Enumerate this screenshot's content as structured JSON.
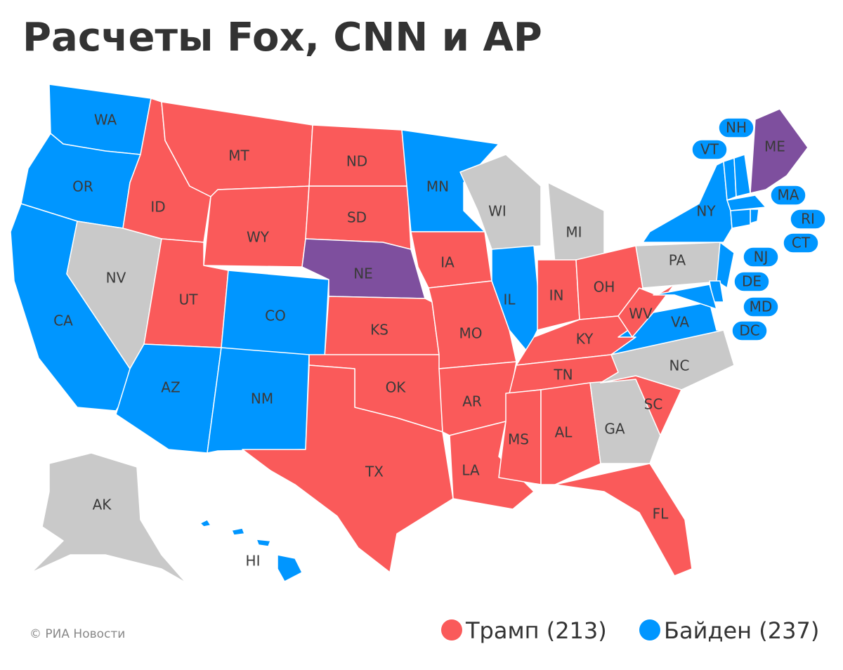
{
  "title": "Расчеты Fox, CNN и AP",
  "states": [
    {
      "code": "WA",
      "color": "#0096ff"
    },
    {
      "code": "OR",
      "color": "#0096ff"
    },
    {
      "code": "CA",
      "color": "#0096ff"
    },
    {
      "code": "NV",
      "color": "#c9c9c9"
    },
    {
      "code": "ID",
      "color": "#fa5a5a"
    },
    {
      "code": "MT",
      "color": "#fa5a5a"
    },
    {
      "code": "WY",
      "color": "#fa5a5a"
    },
    {
      "code": "UT",
      "color": "#fa5a5a"
    },
    {
      "code": "CO",
      "color": "#0096ff"
    },
    {
      "code": "AZ",
      "color": "#0096ff"
    },
    {
      "code": "NM",
      "color": "#0096ff"
    },
    {
      "code": "ND",
      "color": "#fa5a5a"
    },
    {
      "code": "SD",
      "color": "#fa5a5a"
    },
    {
      "code": "NE",
      "color": "#7e4f9e"
    },
    {
      "code": "KS",
      "color": "#fa5a5a"
    },
    {
      "code": "OK",
      "color": "#fa5a5a"
    },
    {
      "code": "TX",
      "color": "#fa5a5a"
    },
    {
      "code": "MN",
      "color": "#0096ff"
    },
    {
      "code": "IA",
      "color": "#fa5a5a"
    },
    {
      "code": "MO",
      "color": "#fa5a5a"
    },
    {
      "code": "AR",
      "color": "#fa5a5a"
    },
    {
      "code": "LA",
      "color": "#fa5a5a"
    },
    {
      "code": "WI",
      "color": "#c9c9c9"
    },
    {
      "code": "MI",
      "color": "#c9c9c9"
    },
    {
      "code": "IL",
      "color": "#0096ff"
    },
    {
      "code": "IN",
      "color": "#fa5a5a"
    },
    {
      "code": "OH",
      "color": "#fa5a5a"
    },
    {
      "code": "KY",
      "color": "#fa5a5a"
    },
    {
      "code": "TN",
      "color": "#fa5a5a"
    },
    {
      "code": "MS",
      "color": "#fa5a5a"
    },
    {
      "code": "AL",
      "color": "#fa5a5a"
    },
    {
      "code": "GA",
      "color": "#c9c9c9"
    },
    {
      "code": "FL",
      "color": "#fa5a5a"
    },
    {
      "code": "SC",
      "color": "#fa5a5a"
    },
    {
      "code": "NC",
      "color": "#c9c9c9"
    },
    {
      "code": "VA",
      "color": "#0096ff"
    },
    {
      "code": "WV",
      "color": "#fa5a5a"
    },
    {
      "code": "PA",
      "color": "#c9c9c9"
    },
    {
      "code": "NY",
      "color": "#0096ff"
    },
    {
      "code": "NJ",
      "color": "#0096ff"
    },
    {
      "code": "DE",
      "color": "#0096ff"
    },
    {
      "code": "MD",
      "color": "#0096ff"
    },
    {
      "code": "DC",
      "color": "#0096ff"
    },
    {
      "code": "VT",
      "color": "#0096ff"
    },
    {
      "code": "NH",
      "color": "#0096ff"
    },
    {
      "code": "MA",
      "color": "#0096ff"
    },
    {
      "code": "RI",
      "color": "#0096ff"
    },
    {
      "code": "CT",
      "color": "#0096ff"
    },
    {
      "code": "ME",
      "color": "#7e4f9e"
    },
    {
      "code": "AK",
      "color": "#c9c9c9"
    },
    {
      "code": "HI",
      "color": "#0096ff"
    }
  ],
  "legend": [
    {
      "label": "Трамп (213)",
      "color": "#fa5a5a"
    },
    {
      "label": "Байден (237)",
      "color": "#0096ff"
    }
  ],
  "credit": "© РИА Новости"
}
